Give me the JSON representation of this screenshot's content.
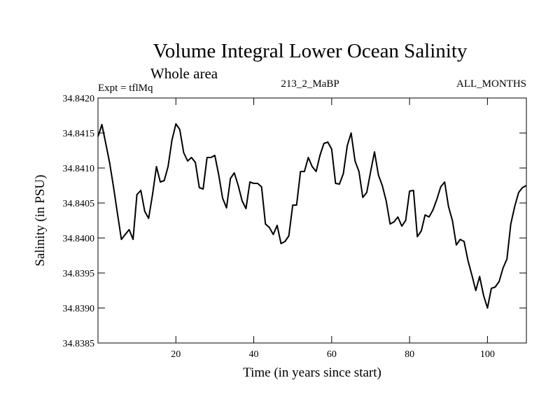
{
  "chart_data": {
    "type": "line",
    "title": "Volume Integral Lower Ocean Salinity",
    "subtitle": "Whole area",
    "expt_label": "Expt = tflMq",
    "run_label": "213_2_MaBP",
    "months_label": "ALL_MONTHS",
    "xlabel": "Time (in years since start)",
    "ylabel": "Salinity (in PSU)",
    "xlim": [
      0,
      110
    ],
    "ylim": [
      34.8385,
      34.842
    ],
    "xticks": [
      20,
      40,
      60,
      80,
      100
    ],
    "xtick_labels": [
      "20",
      "40",
      "60",
      "80",
      "100"
    ],
    "yticks": [
      34.8385,
      34.839,
      34.8395,
      34.84,
      34.8405,
      34.841,
      34.8415,
      34.842
    ],
    "ytick_labels": [
      "34.8385",
      "34.8390",
      "34.8395",
      "34.8400",
      "34.8405",
      "34.8410",
      "34.8415",
      "34.8420"
    ],
    "grid": false,
    "line_color": "#000000",
    "series": [
      {
        "name": "salinity",
        "x": [
          0,
          1,
          2,
          3,
          4,
          5,
          6,
          7,
          8,
          9,
          10,
          11,
          12,
          13,
          14,
          15,
          16,
          17,
          18,
          19,
          20,
          21,
          22,
          23,
          24,
          25,
          26,
          27,
          28,
          29,
          30,
          31,
          32,
          33,
          34,
          35,
          36,
          37,
          38,
          39,
          40,
          41,
          42,
          43,
          44,
          45,
          46,
          47,
          48,
          49,
          50,
          51,
          52,
          53,
          54,
          55,
          56,
          57,
          58,
          59,
          60,
          61,
          62,
          63,
          64,
          65,
          66,
          67,
          68,
          69,
          70,
          71,
          72,
          73,
          74,
          75,
          76,
          77,
          78,
          79,
          80,
          81,
          82,
          83,
          84,
          85,
          86,
          87,
          88,
          89,
          90,
          91,
          92,
          93,
          94,
          95,
          96,
          97,
          98,
          99,
          100,
          101,
          102,
          103,
          104,
          105,
          106,
          107,
          108,
          109,
          110
        ],
        "values": [
          34.84145,
          34.84162,
          34.84135,
          34.84107,
          34.84072,
          34.84035,
          34.83998,
          34.84005,
          34.84012,
          34.83998,
          34.84062,
          34.84068,
          34.84038,
          34.84028,
          34.84062,
          34.84102,
          34.8408,
          34.84082,
          34.84102,
          34.8414,
          34.84163,
          34.84155,
          34.84122,
          34.8411,
          34.84115,
          34.84108,
          34.84072,
          34.8407,
          34.84115,
          34.84115,
          34.84118,
          34.8409,
          34.84057,
          34.84043,
          34.84085,
          34.84093,
          34.84075,
          34.84053,
          34.84042,
          34.8408,
          34.84078,
          34.84078,
          34.84073,
          34.8402,
          34.84015,
          34.84005,
          34.84018,
          34.83992,
          34.83995,
          34.84003,
          34.84047,
          34.84047,
          34.84095,
          34.84095,
          34.84115,
          34.84102,
          34.84095,
          34.84118,
          34.84135,
          34.84137,
          34.84127,
          34.84078,
          34.84077,
          34.84092,
          34.84132,
          34.8415,
          34.8411,
          34.84095,
          34.84058,
          34.84065,
          34.84095,
          34.84123,
          34.8409,
          34.84075,
          34.84053,
          34.8402,
          34.84023,
          34.8403,
          34.84017,
          34.84025,
          34.84067,
          34.84068,
          34.84002,
          34.8401,
          34.84033,
          34.8403,
          34.8404,
          34.84055,
          34.84073,
          34.8408,
          34.84045,
          34.84025,
          34.8399,
          34.83998,
          34.83995,
          34.83968,
          34.83947,
          34.83925,
          34.83945,
          34.83918,
          34.839,
          34.83928,
          34.8393,
          34.83938,
          34.83957,
          34.8397,
          34.8402,
          34.84045,
          34.84065,
          34.84072,
          34.84075
        ]
      }
    ]
  }
}
